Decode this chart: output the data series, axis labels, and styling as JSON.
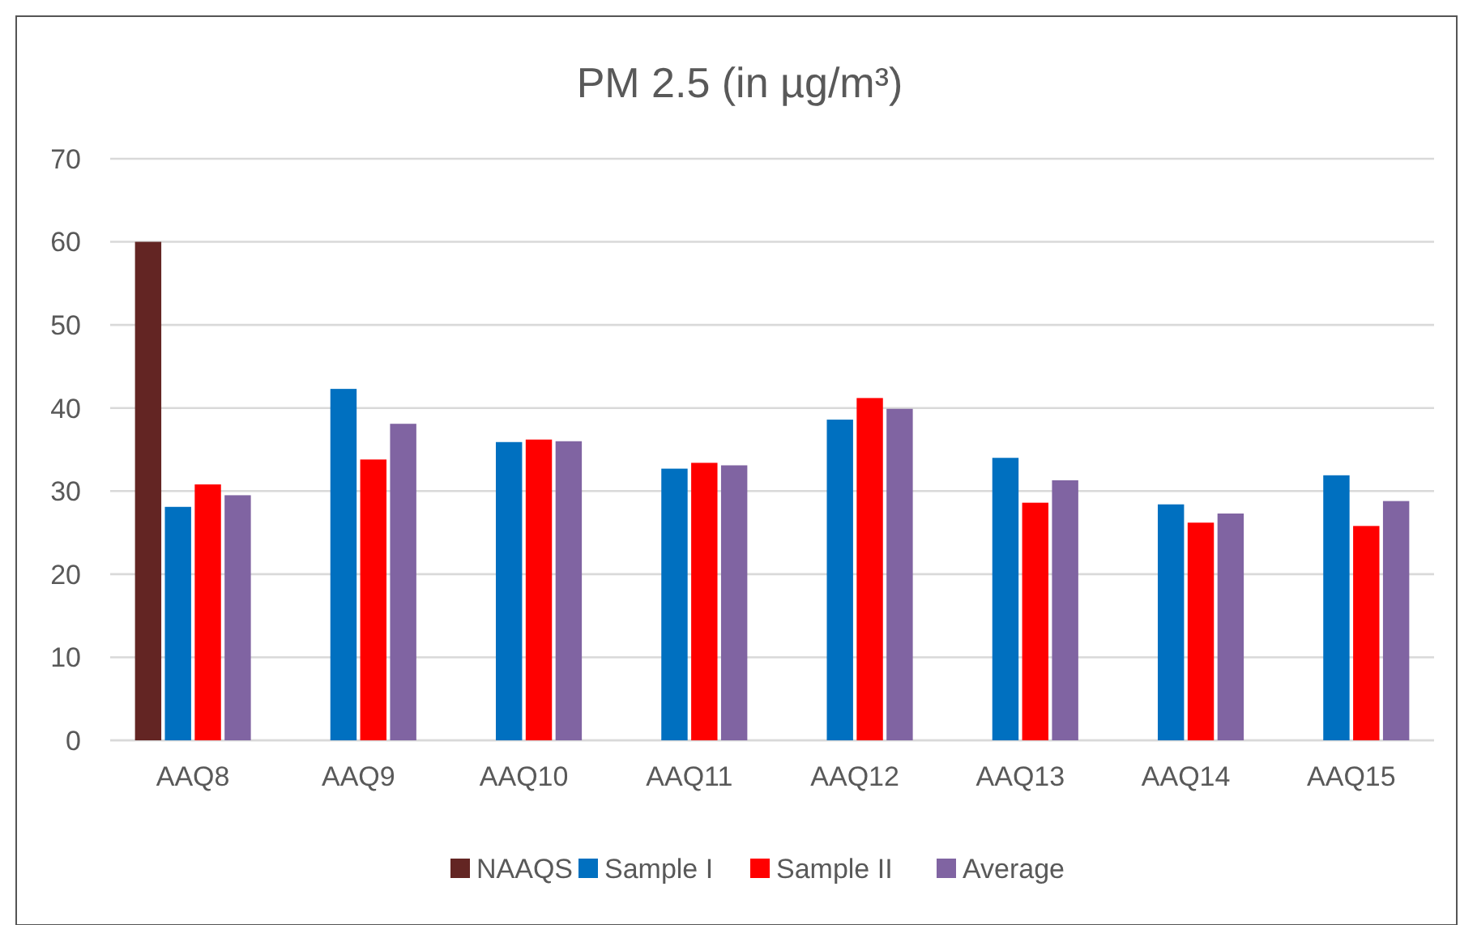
{
  "chart_data": {
    "type": "bar",
    "title": "PM 2.5 (in µg/m³)",
    "categories": [
      "AAQ8",
      "AAQ9",
      "AAQ10",
      "AAQ11",
      "AAQ12",
      "AAQ13",
      "AAQ14",
      "AAQ15"
    ],
    "series": [
      {
        "name": "NAAQS",
        "color": "#632523",
        "values": [
          60,
          null,
          null,
          null,
          null,
          null,
          null,
          null
        ]
      },
      {
        "name": "Sample I",
        "color": "#0070c0",
        "values": [
          28.1,
          42.3,
          35.9,
          32.7,
          38.6,
          34.0,
          28.4,
          31.9
        ]
      },
      {
        "name": "Sample II",
        "color": "#ff0000",
        "values": [
          30.8,
          33.8,
          36.2,
          33.4,
          41.2,
          28.6,
          26.2,
          25.8
        ]
      },
      {
        "name": "Average",
        "color": "#8064a2",
        "values": [
          29.5,
          38.1,
          36.0,
          33.1,
          39.9,
          31.3,
          27.3,
          28.8
        ]
      }
    ],
    "ylim": [
      0,
      70
    ],
    "yticks": [
      0,
      10,
      20,
      30,
      40,
      50,
      60,
      70
    ],
    "grid": "y",
    "legend": "bottom"
  }
}
